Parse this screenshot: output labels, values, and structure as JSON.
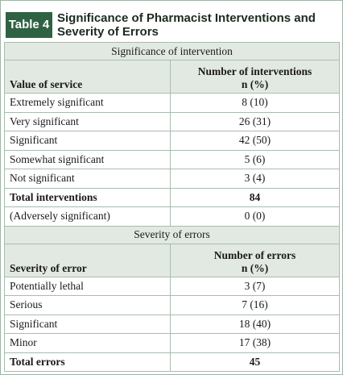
{
  "header": {
    "label": "Table 4",
    "title": "Significance of Pharmacist Interventions and Severity of Errors"
  },
  "sections": [
    {
      "title": "Significance of intervention",
      "columns": [
        "Value of service",
        [
          "Number of interventions",
          "n (%)"
        ]
      ],
      "rows": [
        {
          "cells": [
            "Extremely significant",
            "8 (10)"
          ]
        },
        {
          "cells": [
            "Very significant",
            "26 (31)"
          ]
        },
        {
          "cells": [
            "Significant",
            "42 (50)"
          ]
        },
        {
          "cells": [
            "Somewhat significant",
            "5 (6)"
          ]
        },
        {
          "cells": [
            "Not significant",
            "3 (4)"
          ]
        },
        {
          "cells": [
            "Total interventions",
            "84"
          ],
          "bold": true
        },
        {
          "cells": [
            "(Adversely significant)",
            "0 (0)"
          ]
        }
      ]
    },
    {
      "title": "Severity of errors",
      "columns": [
        "Severity of error",
        [
          "Number of errors",
          "n (%)"
        ]
      ],
      "rows": [
        {
          "cells": [
            "Potentially lethal",
            "3 (7)"
          ]
        },
        {
          "cells": [
            "Serious",
            "7 (16)"
          ]
        },
        {
          "cells": [
            "Significant",
            "18 (40)"
          ]
        },
        {
          "cells": [
            "Minor",
            "17 (38)"
          ]
        },
        {
          "cells": [
            "Total errors",
            "45"
          ],
          "bold": true
        }
      ]
    }
  ]
}
